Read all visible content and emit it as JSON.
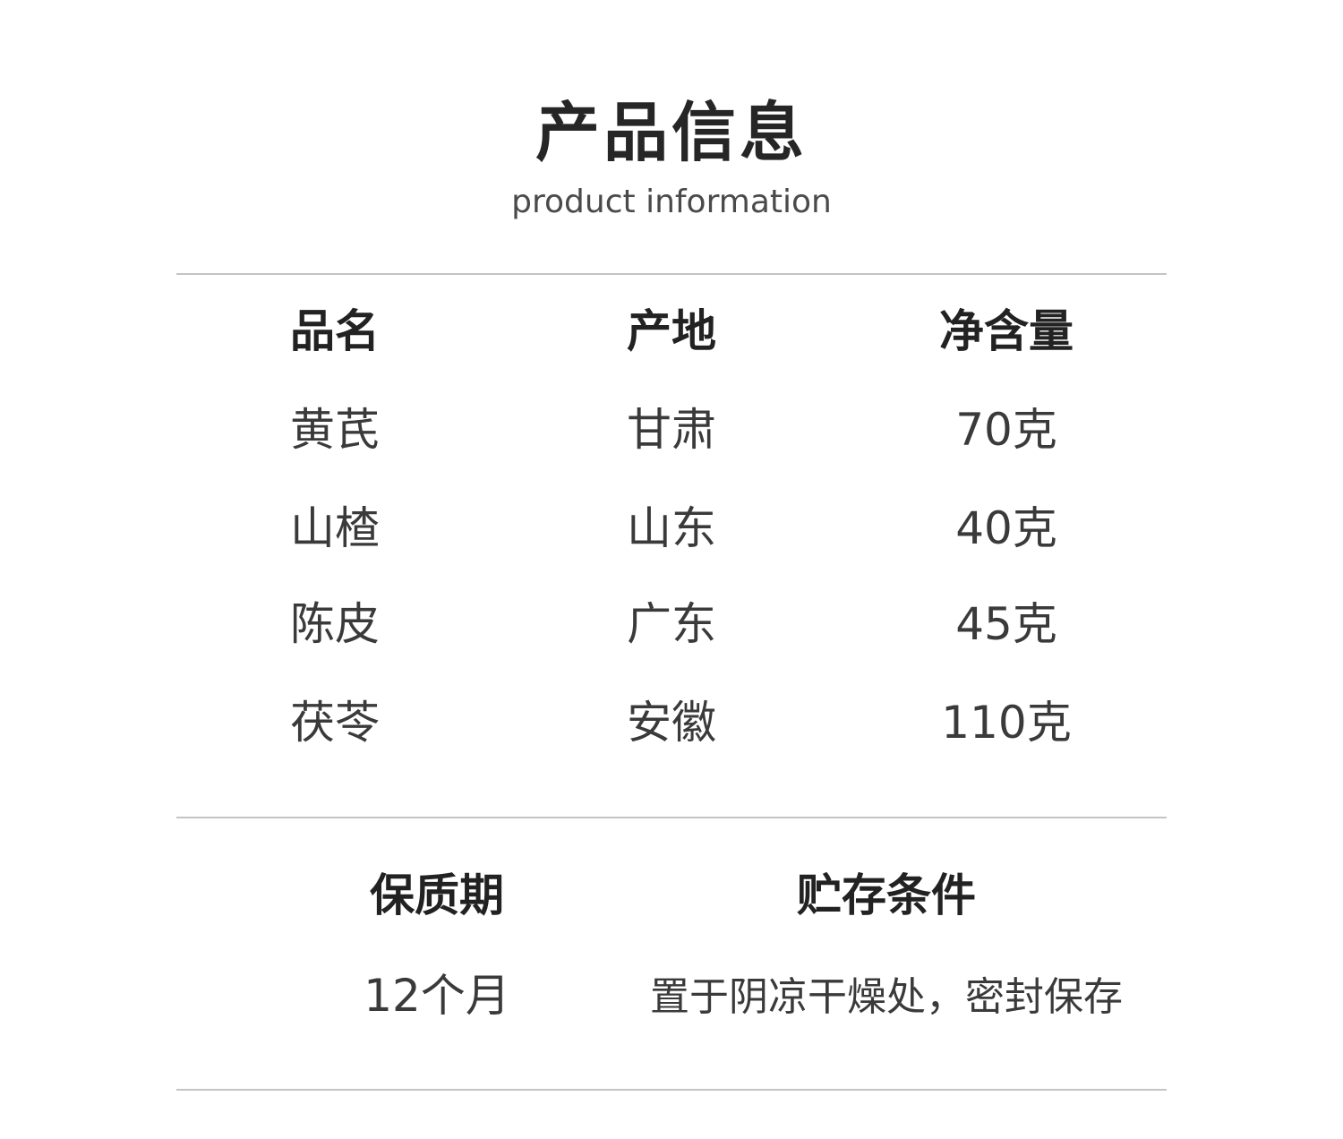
{
  "header": {
    "title": "产品信息",
    "subtitle": "product information"
  },
  "table": {
    "headers": [
      "品名",
      "产地",
      "净含量"
    ],
    "rows": [
      [
        "黄芪",
        "甘肃",
        "70克"
      ],
      [
        "山楂",
        "山东",
        "40克"
      ],
      [
        "陈皮",
        "广东",
        "45克"
      ],
      [
        "茯苓",
        "安徽",
        "110克"
      ]
    ]
  },
  "storage": {
    "shelf_life_label": "保质期",
    "shelf_life_value": "12个月",
    "condition_label": "贮存条件",
    "condition_value": "置于阴凉干燥处，密封保存"
  }
}
